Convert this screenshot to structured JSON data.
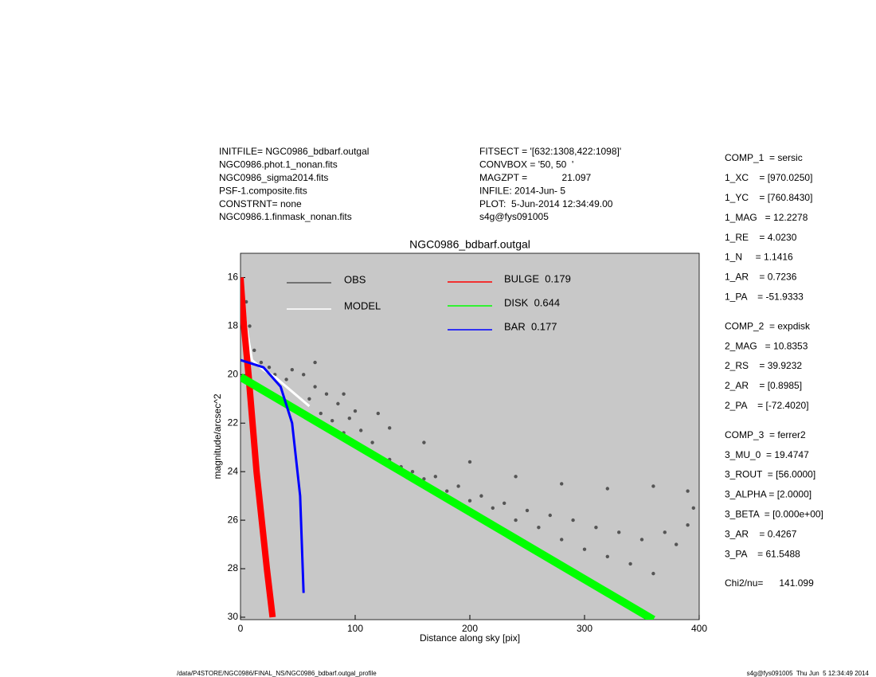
{
  "info_left": [
    "INITFILE= NGC0986_bdbarf.outgal",
    "NGC0986.phot.1_nonan.fits",
    "NGC0986_sigma2014.fits",
    "PSF-1.composite.fits",
    "CONSTRNT= none",
    "NGC0986.1.finmask_nonan.fits"
  ],
  "info_center": [
    "FITSECT = '[632:1308,422:1098]'",
    "CONVBOX = '50, 50  '",
    "MAGZPT =             21.097",
    "INFILE: 2014-Jun- 5",
    "PLOT:  5-Jun-2014 12:34:49.00",
    "s4g@fys091005"
  ],
  "parameters": [
    [
      "COMP_1  = sersic",
      "1_XC    = [970.0250]",
      "1_YC    = [760.8430]",
      "1_MAG   = 12.2278",
      "1_RE    = 4.0230",
      "1_N     = 1.1416",
      "1_AR    = 0.7236",
      "1_PA    = -51.9333"
    ],
    [
      "COMP_2  = expdisk",
      "2_MAG   = 10.8353",
      "2_RS    = 39.9232",
      "2_AR    = [0.8985]",
      "2_PA    = [-72.4020]"
    ],
    [
      "COMP_3  = ferrer2",
      "3_MU_0  = 19.4747",
      "3_ROUT  = [56.0000]",
      "3_ALPHA = [2.0000]",
      "3_BETA  = [0.000e+00]",
      "3_AR    = 0.4267",
      "3_PA    = 61.5488"
    ],
    [
      "Chi2/nu=      141.099"
    ]
  ],
  "footer_left": "/data/P4STORE/NGC0986/FINAL_NS/NGC0986_bdbarf.outgal_profile",
  "footer_right": "s4g@fys091005  Thu Jun  5 12:34:49 2014",
  "chart_data": {
    "type": "line",
    "title": "NGC0986_bdbarf.outgal",
    "x_label": "Distance along sky [pix]",
    "y_label": "magnitude/arcsec^2",
    "xlim": [
      0,
      400
    ],
    "xticks": [
      0,
      100,
      200,
      300,
      400
    ],
    "ylim": [
      30.1,
      15
    ],
    "yticks": [
      16,
      18,
      20,
      22,
      24,
      26,
      28,
      30
    ],
    "background": "#c8c8c8",
    "series": [
      {
        "name": "OBS",
        "type": "scatter",
        "color": "#555555",
        "x": [
          5,
          8,
          12,
          18,
          25,
          30,
          40,
          45,
          55,
          60,
          65,
          70,
          75,
          80,
          85,
          90,
          95,
          100,
          105,
          110,
          115,
          120,
          130,
          140,
          150,
          160,
          170,
          180,
          190,
          200,
          210,
          220,
          230,
          240,
          250,
          260,
          270,
          280,
          290,
          300,
          310,
          320,
          330,
          340,
          350,
          360,
          370,
          380,
          390,
          395,
          100,
          130,
          160,
          200,
          240,
          280,
          320,
          360,
          390,
          65,
          90,
          120
        ],
        "values": [
          17,
          18,
          19,
          19.5,
          19.7,
          20,
          20.2,
          19.8,
          20,
          21,
          20.5,
          21.6,
          20.8,
          21.9,
          21.2,
          22.4,
          21.8,
          22.8,
          22.3,
          23.2,
          22.8,
          23.5,
          23.5,
          23.8,
          24,
          24.3,
          24.2,
          24.8,
          24.6,
          25.2,
          25,
          25.5,
          25.3,
          26,
          25.6,
          26.3,
          25.8,
          26.8,
          26,
          27.2,
          26.3,
          27.5,
          26.5,
          27.8,
          26.8,
          28.2,
          26.5,
          27,
          26.2,
          25.5,
          21.5,
          22.2,
          22.8,
          23.6,
          24.2,
          24.5,
          24.7,
          24.6,
          24.8,
          19.5,
          20.8,
          21.6
        ]
      },
      {
        "name": "MODEL",
        "type": "line",
        "color": "#ffffff",
        "x": [
          0,
          5,
          10,
          20,
          30,
          40,
          50,
          60
        ],
        "values": [
          16,
          18,
          19.4,
          19.8,
          20.1,
          20.5,
          20.9,
          21.3
        ]
      },
      {
        "name": "BULGE  0.179",
        "type": "line",
        "color": "#ff0000",
        "x": [
          0,
          3,
          7,
          14,
          23,
          28
        ],
        "values": [
          16,
          18,
          20,
          24,
          28,
          30
        ]
      },
      {
        "name": "DISK  0.644",
        "type": "line",
        "color": "#00ff00",
        "x": [
          0,
          360
        ],
        "values": [
          20.1,
          30.1
        ]
      },
      {
        "name": "BAR  0.177",
        "type": "line",
        "color": "#0000ff",
        "x": [
          0,
          20,
          35,
          45,
          52,
          55
        ],
        "values": [
          19.4,
          19.7,
          20.5,
          22,
          25,
          29
        ]
      }
    ]
  }
}
